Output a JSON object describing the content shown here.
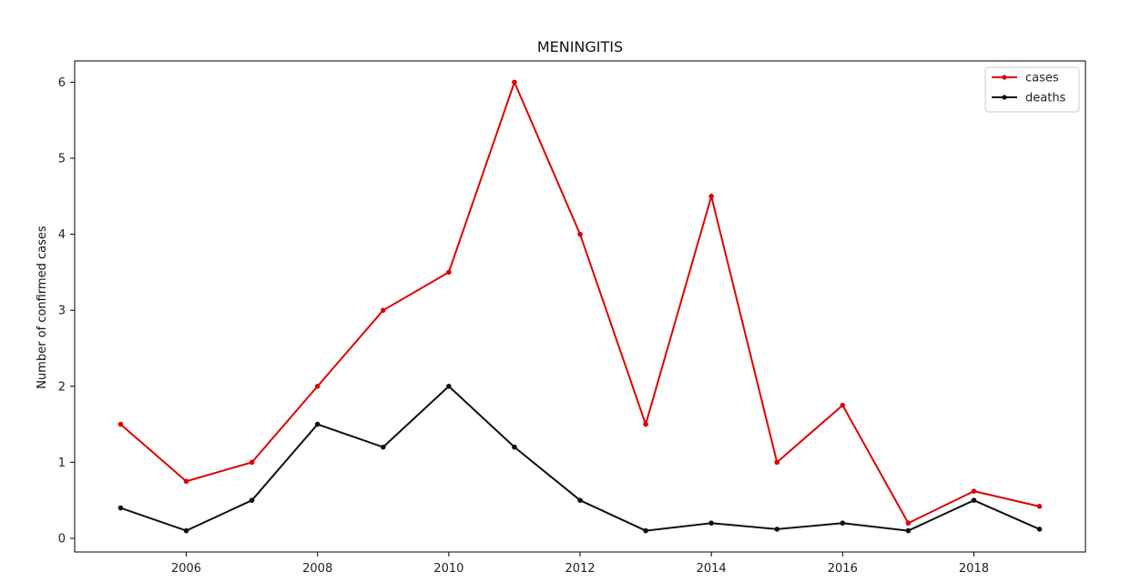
{
  "chart_data": {
    "type": "line",
    "title": "MENINGITIS",
    "xlabel": "",
    "ylabel": "Number of confirmed cases",
    "x": [
      2005,
      2006,
      2007,
      2008,
      2009,
      2010,
      2011,
      2012,
      2013,
      2014,
      2015,
      2016,
      2017,
      2018,
      2019
    ],
    "xlim": [
      2004.3,
      2019.7
    ],
    "ylim": [
      -0.18,
      6.28
    ],
    "xticks": [
      2006,
      2008,
      2010,
      2012,
      2014,
      2016,
      2018
    ],
    "yticks": [
      0,
      1,
      2,
      3,
      4,
      5,
      6
    ],
    "grid": false,
    "legend_position": "top-right",
    "series": [
      {
        "name": "cases",
        "color": "#e00000",
        "values": [
          1.5,
          0.75,
          1.0,
          2.0,
          3.0,
          3.5,
          6.0,
          4.0,
          1.5,
          4.5,
          1.0,
          1.75,
          0.2,
          0.62,
          0.42
        ]
      },
      {
        "name": "deaths",
        "color": "#111111",
        "values": [
          0.4,
          0.1,
          0.5,
          1.5,
          1.2,
          2.0,
          1.2,
          0.5,
          0.1,
          0.2,
          0.12,
          0.2,
          0.1,
          0.5,
          0.12
        ]
      }
    ]
  }
}
